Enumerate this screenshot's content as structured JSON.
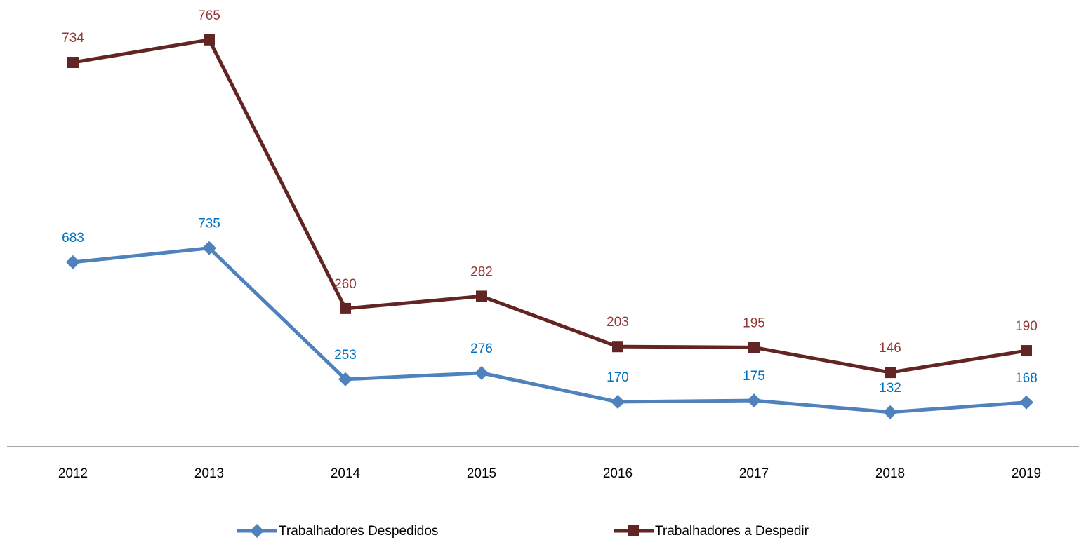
{
  "chart_data": {
    "type": "line",
    "stacked": true,
    "categories": [
      "2012",
      "2013",
      "2014",
      "2015",
      "2016",
      "2017",
      "2018",
      "2019"
    ],
    "series": [
      {
        "name": "Trabalhadores Despedidos",
        "color": "#4f81bd",
        "label_color": "#0070c0",
        "marker": "diamond",
        "values": [
          683,
          735,
          253,
          276,
          170,
          175,
          132,
          168
        ]
      },
      {
        "name": "Trabalhadores a Despedir",
        "color": "#632523",
        "label_color": "#953735",
        "marker": "square",
        "values": [
          734,
          765,
          260,
          282,
          203,
          195,
          146,
          190
        ]
      }
    ],
    "ylim": [
      0,
      1600
    ],
    "legend": "bottom"
  }
}
